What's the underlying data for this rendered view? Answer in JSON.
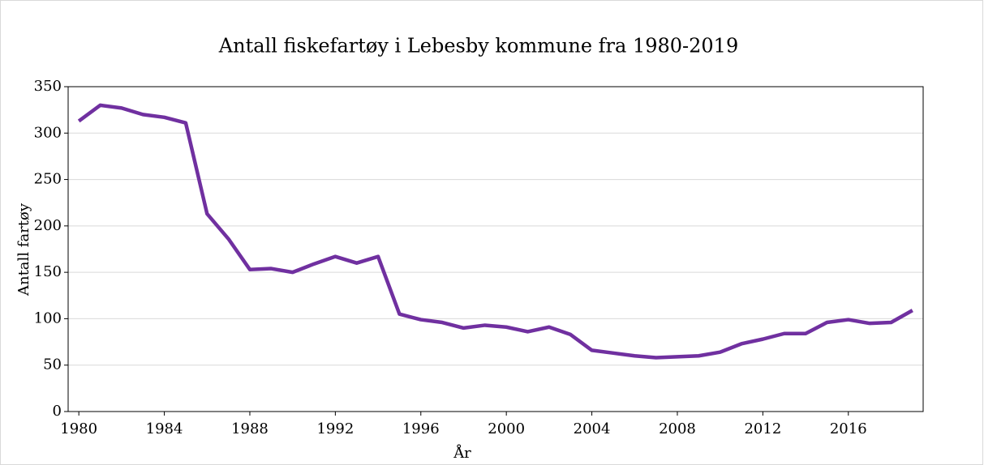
{
  "chart_data": {
    "type": "line",
    "title": "Antall fiskefartøy i Lebesby kommune fra 1980-2019",
    "x_label": "År",
    "y_label": "Antall fartøy",
    "categories": [
      "1980",
      null,
      null,
      null,
      "1984",
      null,
      null,
      null,
      "1988",
      null,
      null,
      null,
      "1992",
      null,
      null,
      null,
      "1996",
      null,
      null,
      null,
      "2000",
      null,
      null,
      null,
      "2004",
      null,
      null,
      null,
      "2008",
      null,
      null,
      null,
      "2012",
      null,
      null,
      null,
      "2016",
      null,
      null,
      null
    ],
    "series": [
      {
        "name": "Antall fartøy",
        "color": "#7030a0",
        "values": [
          313,
          330,
          327,
          320,
          317,
          311,
          213,
          186,
          153,
          154,
          150,
          159,
          167,
          160,
          167,
          105,
          99,
          96,
          90,
          93,
          91,
          86,
          91,
          83,
          66,
          63,
          60,
          58,
          59,
          60,
          64,
          73,
          78,
          84,
          84,
          96,
          99,
          95,
          96,
          109
        ]
      }
    ],
    "ylim": [
      0,
      350
    ],
    "yticks": [
      0,
      50,
      100,
      150,
      200,
      250,
      300,
      350
    ],
    "grid": true
  }
}
